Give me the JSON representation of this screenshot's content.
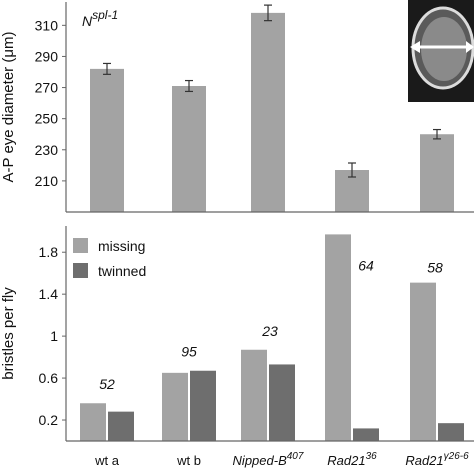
{
  "colors": {
    "bar_gray": "#a3a3a3",
    "bar_dark": "#6e6e6e",
    "axis": "#666666"
  },
  "chart_data": [
    {
      "type": "bar",
      "title_base": "N",
      "title_sup": "spl-1",
      "ylabel": "A-P eye diameter (μm)",
      "ylim": [
        190,
        325
      ],
      "yticks": [
        210,
        230,
        250,
        270,
        290,
        310
      ],
      "categories": [
        "wt a",
        "wt b",
        "Nipped-B407",
        "Rad21 36",
        "Rad21 γ26-6"
      ],
      "values": [
        282,
        271,
        318,
        217,
        240
      ],
      "errors": [
        3.5,
        3.5,
        5,
        4.5,
        3
      ],
      "inset_image": "eye-photo-with-double-arrow"
    },
    {
      "type": "bar",
      "ylabel": "bristles per fly",
      "ylim": [
        0,
        2.05
      ],
      "yticks": [
        "0.2",
        "0.6",
        "1",
        "1.4",
        "1.8"
      ],
      "categories": [
        {
          "base": "wt a",
          "sup": ""
        },
        {
          "base": "wt b",
          "sup": ""
        },
        {
          "base": "Nipped-B",
          "sup": "407"
        },
        {
          "base": "Rad21",
          "sup": "36"
        },
        {
          "base": "Rad21",
          "sup": "γ26-6"
        }
      ],
      "series": [
        {
          "name": "missing",
          "values": [
            0.36,
            0.65,
            0.87,
            1.97,
            1.51
          ]
        },
        {
          "name": "twinned",
          "values": [
            0.28,
            0.67,
            0.73,
            0.12,
            0.17
          ]
        }
      ],
      "n_labels": [
        "52",
        "95",
        "23",
        "64",
        "58"
      ],
      "legend": [
        "missing",
        "twinned"
      ],
      "legend_position": "top-left"
    }
  ]
}
